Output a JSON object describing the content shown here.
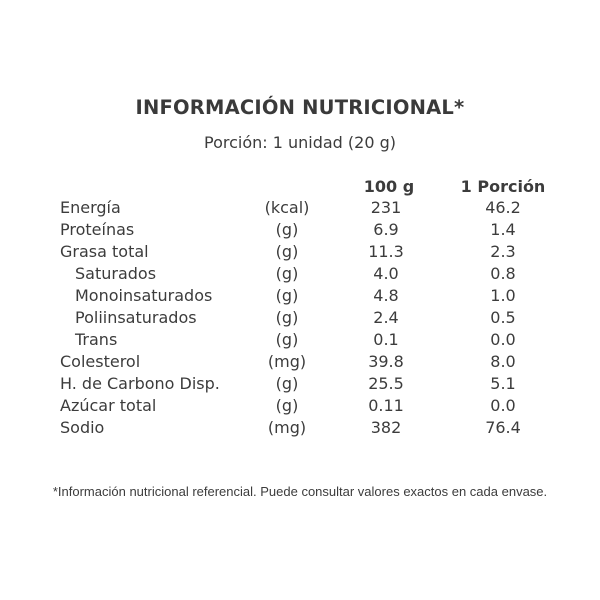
{
  "title": "INFORMACIÓN NUTRICIONAL*",
  "serving": "Porción: 1 unidad (20 g)",
  "headers": {
    "per100": "100 g",
    "perPortion": "1 Porción"
  },
  "rows": [
    {
      "name": "Energía",
      "unit": "(kcal)",
      "per100": "231",
      "perPortion": "46.2"
    },
    {
      "name": "Proteínas",
      "unit": "(g)",
      "per100": "6.9",
      "perPortion": "1.4"
    },
    {
      "name": "Grasa total",
      "unit": "(g)",
      "per100": "11.3",
      "perPortion": "2.3"
    },
    {
      "name": "Saturados",
      "unit": "(g)",
      "per100": "4.0",
      "perPortion": "0.8"
    },
    {
      "name": "Monoinsaturados",
      "unit": "(g)",
      "per100": "4.8",
      "perPortion": "1.0"
    },
    {
      "name": "Poliinsaturados",
      "unit": "(g)",
      "per100": "2.4",
      "perPortion": "0.5"
    },
    {
      "name": "Trans",
      "unit": "(g)",
      "per100": "0.1",
      "perPortion": "0.0"
    },
    {
      "name": "Colesterol",
      "unit": "(mg)",
      "per100": "39.8",
      "perPortion": "8.0"
    },
    {
      "name": "H. de Carbono Disp.",
      "unit": "(g)",
      "per100": "25.5",
      "perPortion": "5.1"
    },
    {
      "name": "Azúcar total",
      "unit": "(g)",
      "per100": "0.11",
      "perPortion": "0.0"
    },
    {
      "name": "Sodio",
      "unit": "(mg)",
      "per100": "382",
      "perPortion": "76.4"
    }
  ],
  "footnote": "*Información nutricional referencial. Puede consultar valores exactos en cada envase."
}
